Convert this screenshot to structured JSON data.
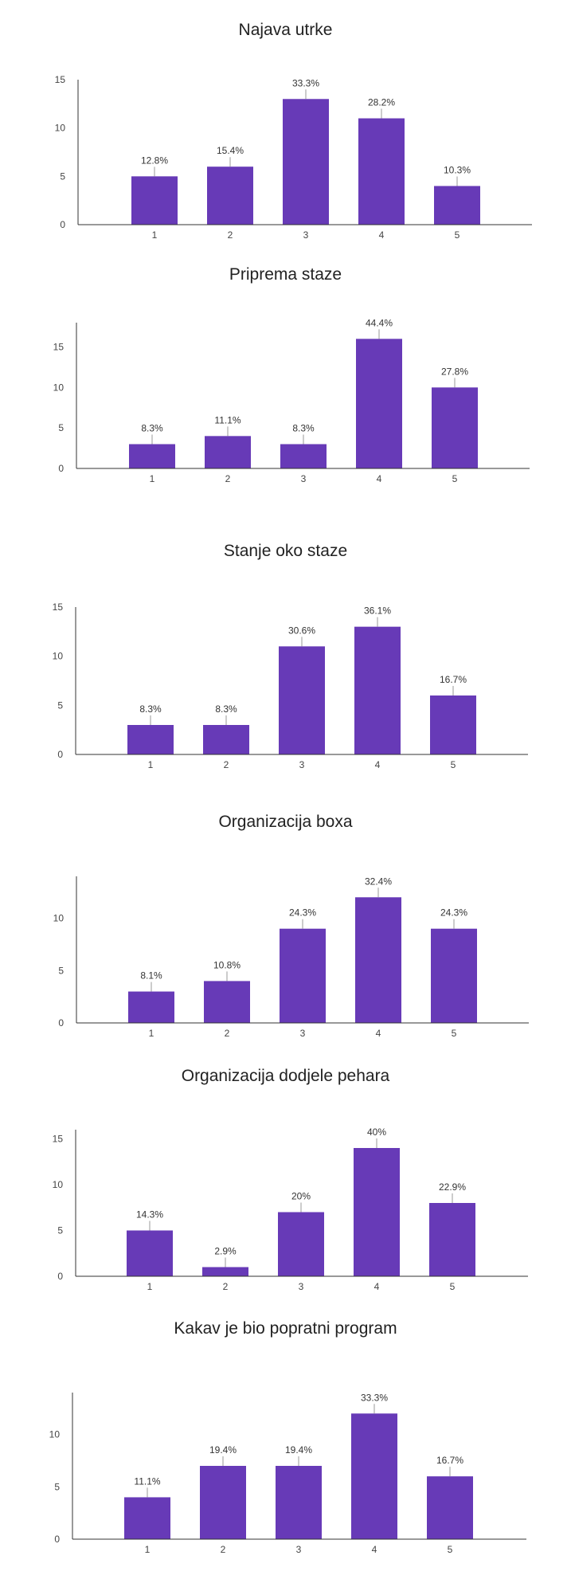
{
  "colors": {
    "bar": "#673ab7",
    "axis": "#333333",
    "leader": "#999999",
    "text": "#444444"
  },
  "chart_data": [
    {
      "type": "bar",
      "title": "Najava utrke",
      "categories": [
        "1",
        "2",
        "3",
        "4",
        "5"
      ],
      "values": [
        5,
        6,
        13,
        11,
        4
      ],
      "data_labels": [
        "12.8%",
        "15.4%",
        "33.3%",
        "28.2%",
        "10.3%"
      ],
      "ylim": [
        0,
        15
      ],
      "yticks": [
        "0",
        "5",
        "10",
        "15"
      ],
      "xlabel": "",
      "ylabel": "",
      "grid": false
    },
    {
      "type": "bar",
      "title": "Priprema staze",
      "categories": [
        "1",
        "2",
        "3",
        "4",
        "5"
      ],
      "values": [
        3,
        4,
        3,
        16,
        10
      ],
      "data_labels": [
        "8.3%",
        "11.1%",
        "8.3%",
        "44.4%",
        "27.8%"
      ],
      "ylim": [
        0,
        18
      ],
      "yticks": [
        "0",
        "5",
        "10",
        "15"
      ],
      "xlabel": "",
      "ylabel": "",
      "grid": false
    },
    {
      "type": "bar",
      "title": "Stanje oko staze",
      "categories": [
        "1",
        "2",
        "3",
        "4",
        "5"
      ],
      "values": [
        3,
        3,
        11,
        13,
        6
      ],
      "data_labels": [
        "8.3%",
        "8.3%",
        "30.6%",
        "36.1%",
        "16.7%"
      ],
      "ylim": [
        0,
        15
      ],
      "yticks": [
        "0",
        "5",
        "10",
        "15"
      ],
      "xlabel": "",
      "ylabel": "",
      "grid": false
    },
    {
      "type": "bar",
      "title": "Organizacija boxa",
      "categories": [
        "1",
        "2",
        "3",
        "4",
        "5"
      ],
      "values": [
        3,
        4,
        9,
        12,
        9
      ],
      "data_labels": [
        "8.1%",
        "10.8%",
        "24.3%",
        "32.4%",
        "24.3%"
      ],
      "ylim": [
        0,
        14
      ],
      "yticks": [
        "0",
        "5",
        "10"
      ],
      "xlabel": "",
      "ylabel": "",
      "grid": false
    },
    {
      "type": "bar",
      "title": "Organizacija dodjele pehara",
      "categories": [
        "1",
        "2",
        "3",
        "4",
        "5"
      ],
      "values": [
        5,
        1,
        7,
        14,
        8
      ],
      "data_labels": [
        "14.3%",
        "2.9%",
        "20%",
        "40%",
        "22.9%"
      ],
      "ylim": [
        0,
        16
      ],
      "yticks": [
        "0",
        "5",
        "10",
        "15"
      ],
      "xlabel": "",
      "ylabel": "",
      "grid": false
    },
    {
      "type": "bar",
      "title": "Kakav je bio popratni program",
      "categories": [
        "1",
        "2",
        "3",
        "4",
        "5"
      ],
      "values": [
        4,
        7,
        7,
        12,
        6
      ],
      "data_labels": [
        "11.1%",
        "19.4%",
        "19.4%",
        "33.3%",
        "16.7%"
      ],
      "ylim": [
        0,
        14
      ],
      "yticks": [
        "0",
        "5",
        "10"
      ],
      "xlabel": "",
      "ylabel": "",
      "grid": false
    }
  ]
}
